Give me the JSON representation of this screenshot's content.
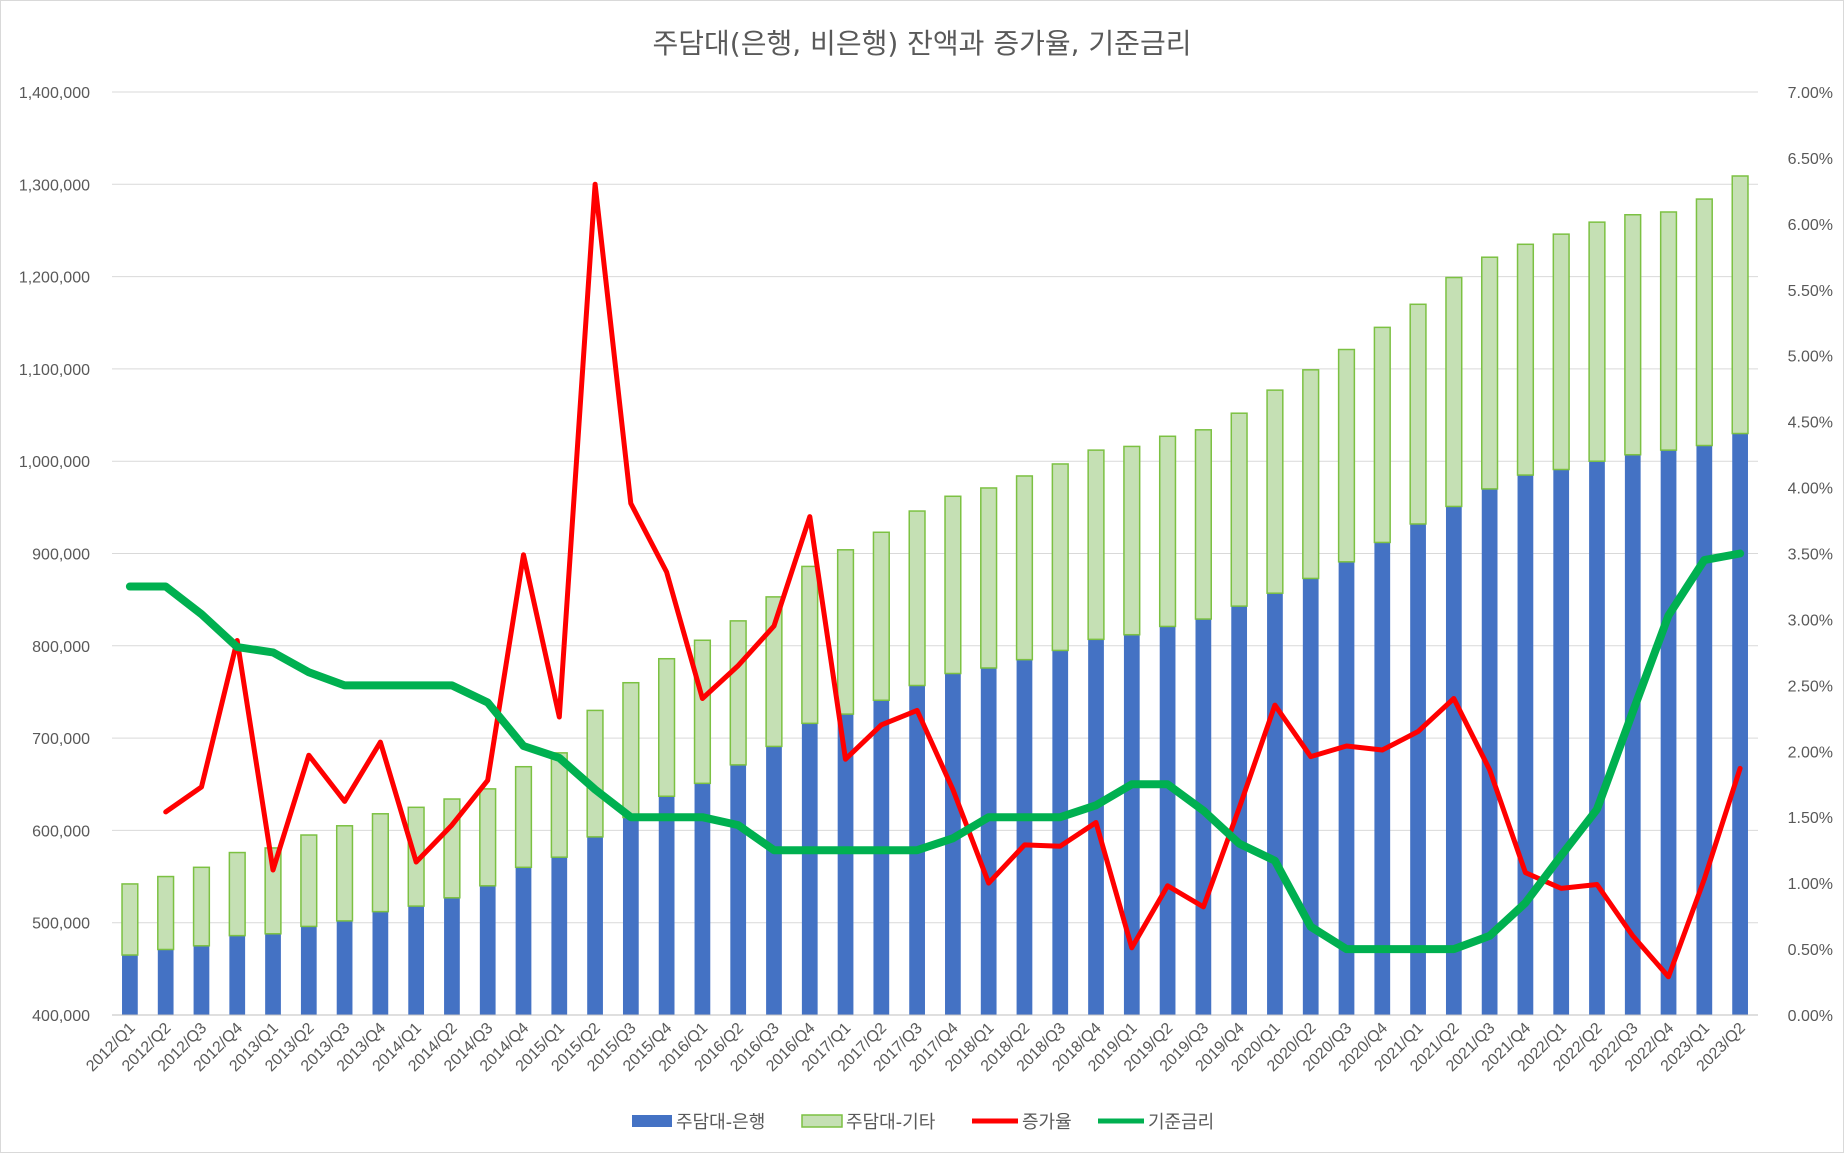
{
  "chart_data": {
    "type": "bar",
    "title": "주담대(은행, 비은행) 잔액과 증가율, 기준금리",
    "categories": [
      "2012/Q1",
      "2012/Q2",
      "2012/Q3",
      "2012/Q4",
      "2013/Q1",
      "2013/Q2",
      "2013/Q3",
      "2013/Q4",
      "2014/Q1",
      "2014/Q2",
      "2014/Q3",
      "2014/Q4",
      "2015/Q1",
      "2015/Q2",
      "2015/Q3",
      "2015/Q4",
      "2016/Q1",
      "2016/Q2",
      "2016/Q3",
      "2016/Q4",
      "2017/Q1",
      "2017/Q2",
      "2017/Q3",
      "2017/Q4",
      "2018/Q1",
      "2018/Q2",
      "2018/Q3",
      "2018/Q4",
      "2019/Q1",
      "2019/Q2",
      "2019/Q3",
      "2019/Q4",
      "2020/Q1",
      "2020/Q2",
      "2020/Q3",
      "2020/Q4",
      "2021/Q1",
      "2021/Q2",
      "2021/Q3",
      "2021/Q4",
      "2022/Q1",
      "2022/Q2",
      "2022/Q3",
      "2022/Q4",
      "2023/Q1",
      "2023/Q2"
    ],
    "ylim": [
      400000,
      1400000
    ],
    "yticks": [
      "400,000",
      "500,000",
      "600,000",
      "700,000",
      "800,000",
      "900,000",
      "1,000,000",
      "1,100,000",
      "1,200,000",
      "1,300,000",
      "1,400,000"
    ],
    "y2lim": [
      0,
      7
    ],
    "y2ticks": [
      "0.00%",
      "0.50%",
      "1.00%",
      "1.50%",
      "2.00%",
      "2.50%",
      "3.00%",
      "3.50%",
      "4.00%",
      "4.50%",
      "5.00%",
      "5.50%",
      "6.00%",
      "6.50%",
      "7.00%"
    ],
    "series": [
      {
        "name": "주담대-은행",
        "kind": "stacked-bar",
        "axis": "left",
        "color": "#4472c4",
        "values": [
          465000,
          471000,
          475000,
          486000,
          488000,
          496000,
          502000,
          512000,
          518000,
          527000,
          540000,
          560000,
          571000,
          593000,
          614000,
          637000,
          651000,
          671000,
          691000,
          716000,
          726000,
          741000,
          757000,
          770000,
          776000,
          785000,
          795000,
          807000,
          812000,
          821000,
          829000,
          843000,
          857000,
          873000,
          891000,
          912000,
          932000,
          951000,
          970000,
          985000,
          991000,
          1000000,
          1007000,
          1012000,
          1017000,
          1030000
        ]
      },
      {
        "name": "주담대-기타",
        "kind": "stacked-bar",
        "axis": "left",
        "color": "#c5e0b4",
        "stroke": "#7cc142",
        "values": [
          77000,
          79000,
          85000,
          90000,
          93000,
          99000,
          103000,
          106000,
          107000,
          107000,
          105000,
          109000,
          113000,
          137000,
          146000,
          149000,
          155000,
          156000,
          162000,
          170000,
          178000,
          182000,
          189000,
          192000,
          195000,
          199000,
          202000,
          205000,
          204000,
          206000,
          205000,
          209000,
          220000,
          226000,
          230000,
          233000,
          238000,
          248000,
          251000,
          250000,
          255000,
          259000,
          260000,
          258000,
          267000,
          279000
        ]
      },
      {
        "name": "증가율",
        "kind": "line",
        "axis": "right",
        "color": "#ff0000",
        "values": [
          null,
          1.54,
          1.73,
          2.84,
          1.1,
          1.97,
          1.62,
          2.07,
          1.16,
          1.44,
          1.78,
          3.49,
          2.26,
          6.3,
          3.88,
          3.36,
          2.4,
          2.65,
          2.95,
          3.78,
          1.94,
          2.2,
          2.31,
          1.71,
          1.0,
          1.29,
          1.28,
          1.46,
          0.51,
          0.98,
          0.82,
          1.57,
          2.35,
          1.96,
          2.04,
          2.01,
          2.15,
          2.4,
          1.86,
          1.08,
          0.96,
          0.99,
          0.6,
          0.29,
          1.03,
          1.87
        ]
      },
      {
        "name": "기준금리",
        "kind": "line",
        "axis": "right",
        "color": "#00b050",
        "values": [
          3.25,
          3.25,
          3.04,
          2.79,
          2.75,
          2.6,
          2.5,
          2.5,
          2.5,
          2.5,
          2.37,
          2.04,
          1.95,
          1.71,
          1.5,
          1.5,
          1.5,
          1.44,
          1.25,
          1.25,
          1.25,
          1.25,
          1.25,
          1.34,
          1.5,
          1.5,
          1.5,
          1.59,
          1.75,
          1.75,
          1.55,
          1.3,
          1.17,
          0.67,
          0.5,
          0.5,
          0.5,
          0.5,
          0.6,
          0.85,
          1.21,
          1.56,
          2.3,
          3.03,
          3.45,
          3.5
        ]
      }
    ],
    "legend": {
      "position": "bottom"
    }
  }
}
